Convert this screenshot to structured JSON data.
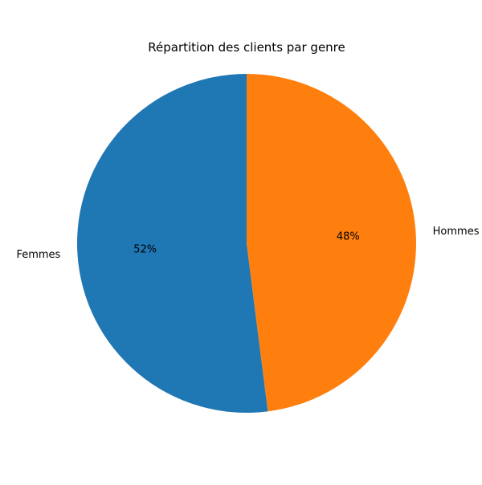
{
  "chart_data": {
    "type": "pie",
    "title": "Répartition des clients par genre",
    "slices": [
      {
        "label": "Femmes",
        "value": 52,
        "value_label": "52%",
        "color": "#1f77b4"
      },
      {
        "label": "Hommes",
        "value": 48,
        "value_label": "48%",
        "color": "#ff7f0e"
      }
    ],
    "start_angle_deg": 90,
    "direction": "counterclockwise",
    "legend": "none"
  }
}
